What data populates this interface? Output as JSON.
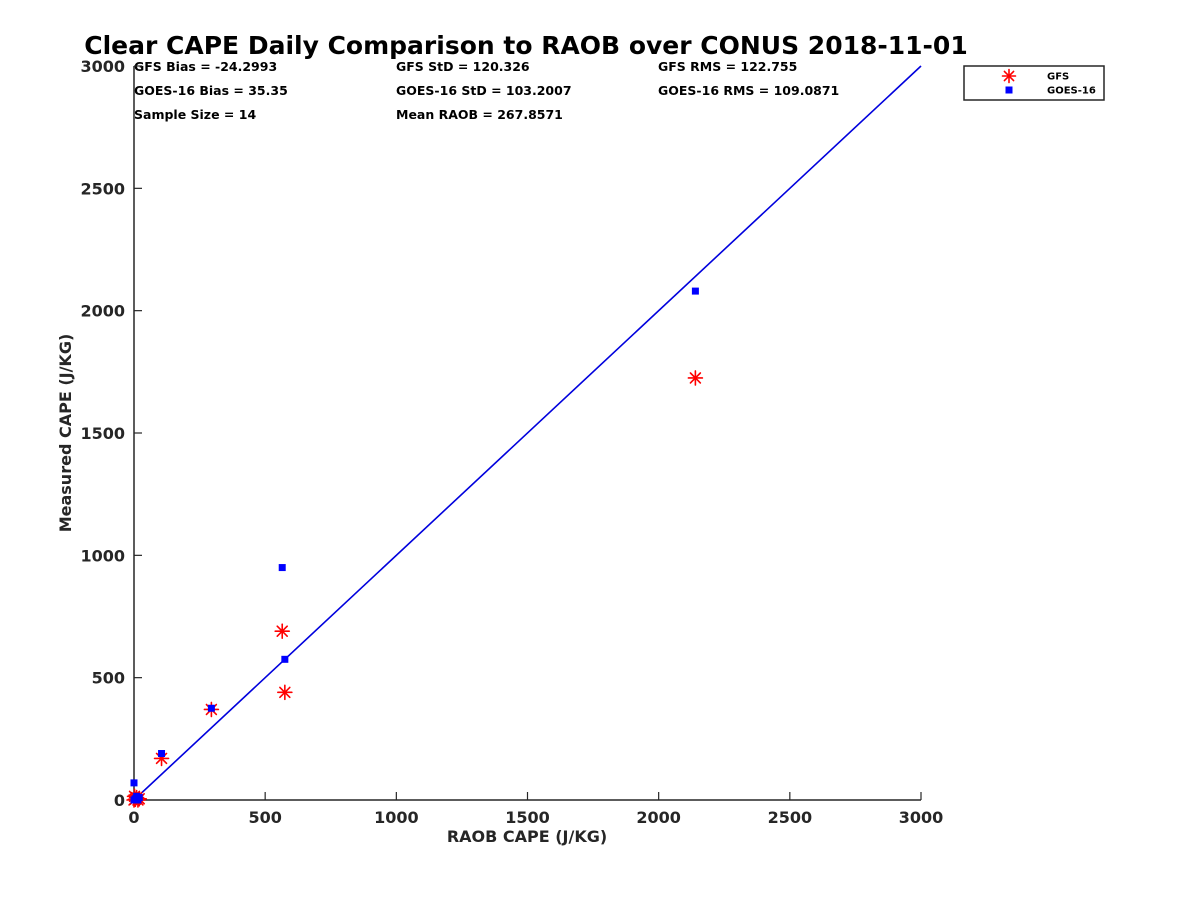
{
  "chart_data": {
    "type": "scatter",
    "title": "Clear CAPE Daily Comparison to RAOB over CONUS 2018-11-01",
    "xlabel": "RAOB CAPE (J/KG)",
    "ylabel": "Measured CAPE (J/KG)",
    "xlim": [
      0,
      3000
    ],
    "ylim": [
      0,
      3000
    ],
    "xticks": [
      "0",
      "500",
      "1000",
      "1500",
      "2000",
      "2500",
      "3000"
    ],
    "yticks": [
      "0",
      "500",
      "1000",
      "1500",
      "2000",
      "2500",
      "3000"
    ],
    "grid": false,
    "legend_position": "top-right",
    "reference_line": {
      "x": [
        0,
        3000
      ],
      "y": [
        0,
        3000
      ],
      "color": "#0000dd"
    },
    "stats": [
      [
        "GFS Bias = -24.2993",
        "GFS StD = 120.326",
        "GFS RMS = 122.755"
      ],
      [
        "GOES-16 Bias = 35.35",
        "GOES-16 StD = 103.2007",
        "GOES-16 RMS = 109.0871"
      ],
      [
        "Sample Size = 14",
        "Mean RAOB = 267.8571",
        ""
      ]
    ],
    "series": [
      {
        "name": "GFS",
        "marker": "asterisk",
        "color": "#ff0000",
        "points": [
          [
            0,
            0
          ],
          [
            5,
            3
          ],
          [
            10,
            10
          ],
          [
            15,
            0
          ],
          [
            20,
            5
          ],
          [
            2,
            15
          ],
          [
            105,
            170
          ],
          [
            295,
            370
          ],
          [
            565,
            690
          ],
          [
            575,
            440
          ],
          [
            2140,
            1725
          ]
        ]
      },
      {
        "name": "GOES-16",
        "marker": "square",
        "color": "#0000ff",
        "points": [
          [
            0,
            70
          ],
          [
            0,
            0
          ],
          [
            5,
            5
          ],
          [
            10,
            15
          ],
          [
            15,
            0
          ],
          [
            20,
            10
          ],
          [
            105,
            190
          ],
          [
            295,
            375
          ],
          [
            565,
            950
          ],
          [
            575,
            575
          ],
          [
            2140,
            2080
          ]
        ]
      }
    ]
  }
}
